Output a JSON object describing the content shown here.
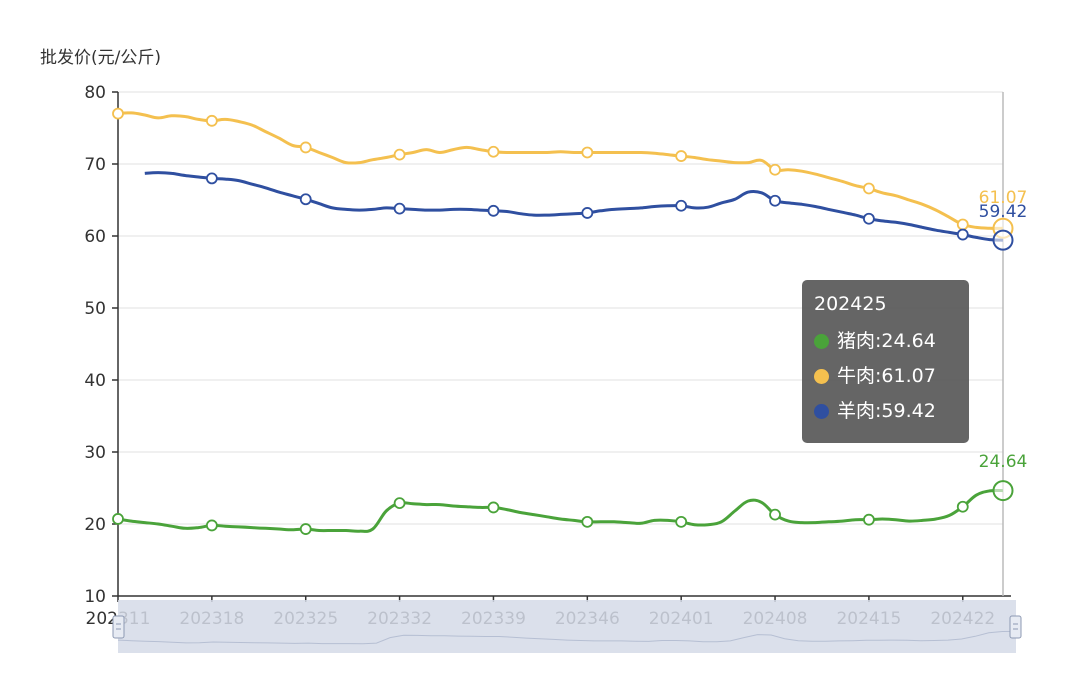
{
  "colors": {
    "pork": "#4aa33a",
    "beef": "#f4c04f",
    "lamb": "#2f4fa0"
  },
  "tooltip": {
    "title": "202425",
    "rows": [
      {
        "series": "猪肉",
        "value": "24.64",
        "color": "#4aa33a"
      },
      {
        "series": "牛肉",
        "value": "61.07",
        "color": "#f4c04f"
      },
      {
        "series": "羊肉",
        "value": "59.42",
        "color": "#2f4fa0"
      }
    ]
  },
  "chart_data": {
    "type": "line",
    "title": "",
    "ylabel": "批发价(元/公斤)",
    "xlabel": "",
    "ylim": [
      10,
      80
    ],
    "yticks": [
      10,
      20,
      30,
      40,
      50,
      60,
      70,
      80
    ],
    "grid": true,
    "legend": "none",
    "x_tick_labels": [
      "202311",
      "202318",
      "202325",
      "202332",
      "202339",
      "202346",
      "202401",
      "202408",
      "202415",
      "202422"
    ],
    "x": [
      "202311",
      "202312",
      "202313",
      "202314",
      "202315",
      "202316",
      "202317",
      "202318",
      "202319",
      "202320",
      "202321",
      "202322",
      "202323",
      "202324",
      "202325",
      "202326",
      "202327",
      "202328",
      "202329",
      "202330",
      "202331",
      "202332",
      "202333",
      "202334",
      "202335",
      "202336",
      "202337",
      "202338",
      "202339",
      "202340",
      "202341",
      "202342",
      "202343",
      "202344",
      "202345",
      "202346",
      "202347",
      "202348",
      "202349",
      "202350",
      "202351",
      "202352",
      "202401",
      "202402",
      "202403",
      "202404",
      "202405",
      "202406",
      "202407",
      "202408",
      "202409",
      "202410",
      "202411",
      "202412",
      "202413",
      "202414",
      "202415",
      "202416",
      "202417",
      "202418",
      "202419",
      "202420",
      "202421",
      "202422",
      "202423",
      "202424",
      "202425"
    ],
    "series": [
      {
        "name": "猪肉",
        "color": "#4aa33a",
        "values": [
          20.7,
          20.4,
          20.2,
          20.0,
          19.7,
          19.4,
          19.5,
          19.8,
          19.7,
          19.6,
          19.5,
          19.4,
          19.3,
          19.2,
          19.3,
          19.1,
          19.1,
          19.1,
          19.0,
          19.3,
          21.8,
          22.9,
          22.8,
          22.7,
          22.7,
          22.5,
          22.4,
          22.3,
          22.3,
          22.0,
          21.6,
          21.3,
          21.0,
          20.7,
          20.5,
          20.3,
          20.3,
          20.3,
          20.2,
          20.1,
          20.5,
          20.5,
          20.3,
          19.9,
          19.9,
          20.3,
          21.8,
          23.2,
          23.0,
          21.3,
          20.4,
          20.2,
          20.2,
          20.3,
          20.4,
          20.6,
          20.6,
          20.7,
          20.6,
          20.4,
          20.5,
          20.7,
          21.2,
          22.4,
          24.0,
          24.6,
          24.64
        ]
      },
      {
        "name": "牛肉",
        "color": "#f4c04f",
        "values": [
          77.0,
          77.1,
          76.8,
          76.4,
          76.7,
          76.6,
          76.2,
          76.0,
          76.2,
          75.9,
          75.4,
          74.5,
          73.6,
          72.6,
          72.3,
          71.6,
          70.9,
          70.2,
          70.2,
          70.6,
          70.9,
          71.3,
          71.6,
          72.0,
          71.6,
          72.0,
          72.3,
          72.0,
          71.7,
          71.6,
          71.6,
          71.6,
          71.6,
          71.7,
          71.6,
          71.6,
          71.6,
          71.6,
          71.6,
          71.6,
          71.5,
          71.3,
          71.1,
          70.9,
          70.6,
          70.4,
          70.2,
          70.2,
          70.5,
          69.2,
          69.2,
          69.0,
          68.6,
          68.1,
          67.6,
          67.0,
          66.6,
          66.0,
          65.6,
          65.0,
          64.4,
          63.6,
          62.6,
          61.6,
          61.2,
          61.07,
          61.07
        ]
      },
      {
        "name": "羊肉",
        "color": "#2f4fa0",
        "values": [
          null,
          null,
          68.7,
          68.8,
          68.7,
          68.4,
          68.2,
          68.0,
          67.9,
          67.7,
          67.2,
          66.7,
          66.1,
          65.6,
          65.1,
          64.5,
          63.9,
          63.7,
          63.6,
          63.7,
          63.9,
          63.8,
          63.7,
          63.6,
          63.6,
          63.7,
          63.7,
          63.6,
          63.5,
          63.4,
          63.1,
          62.9,
          62.9,
          63.0,
          63.1,
          63.2,
          63.5,
          63.7,
          63.8,
          63.9,
          64.1,
          64.2,
          64.2,
          63.9,
          64.0,
          64.6,
          65.1,
          66.1,
          66.0,
          64.9,
          64.6,
          64.4,
          64.1,
          63.7,
          63.3,
          62.9,
          62.4,
          62.1,
          61.9,
          61.6,
          61.2,
          60.8,
          60.5,
          60.2,
          59.8,
          59.5,
          59.42
        ]
      }
    ],
    "end_labels": [
      {
        "series": "牛肉",
        "text": "61.07",
        "color": "#f4c04f"
      },
      {
        "series": "羊肉",
        "text": "59.42",
        "color": "#2f4fa0"
      },
      {
        "series": "猪肉",
        "text": "24.64",
        "color": "#4aa33a"
      }
    ]
  }
}
